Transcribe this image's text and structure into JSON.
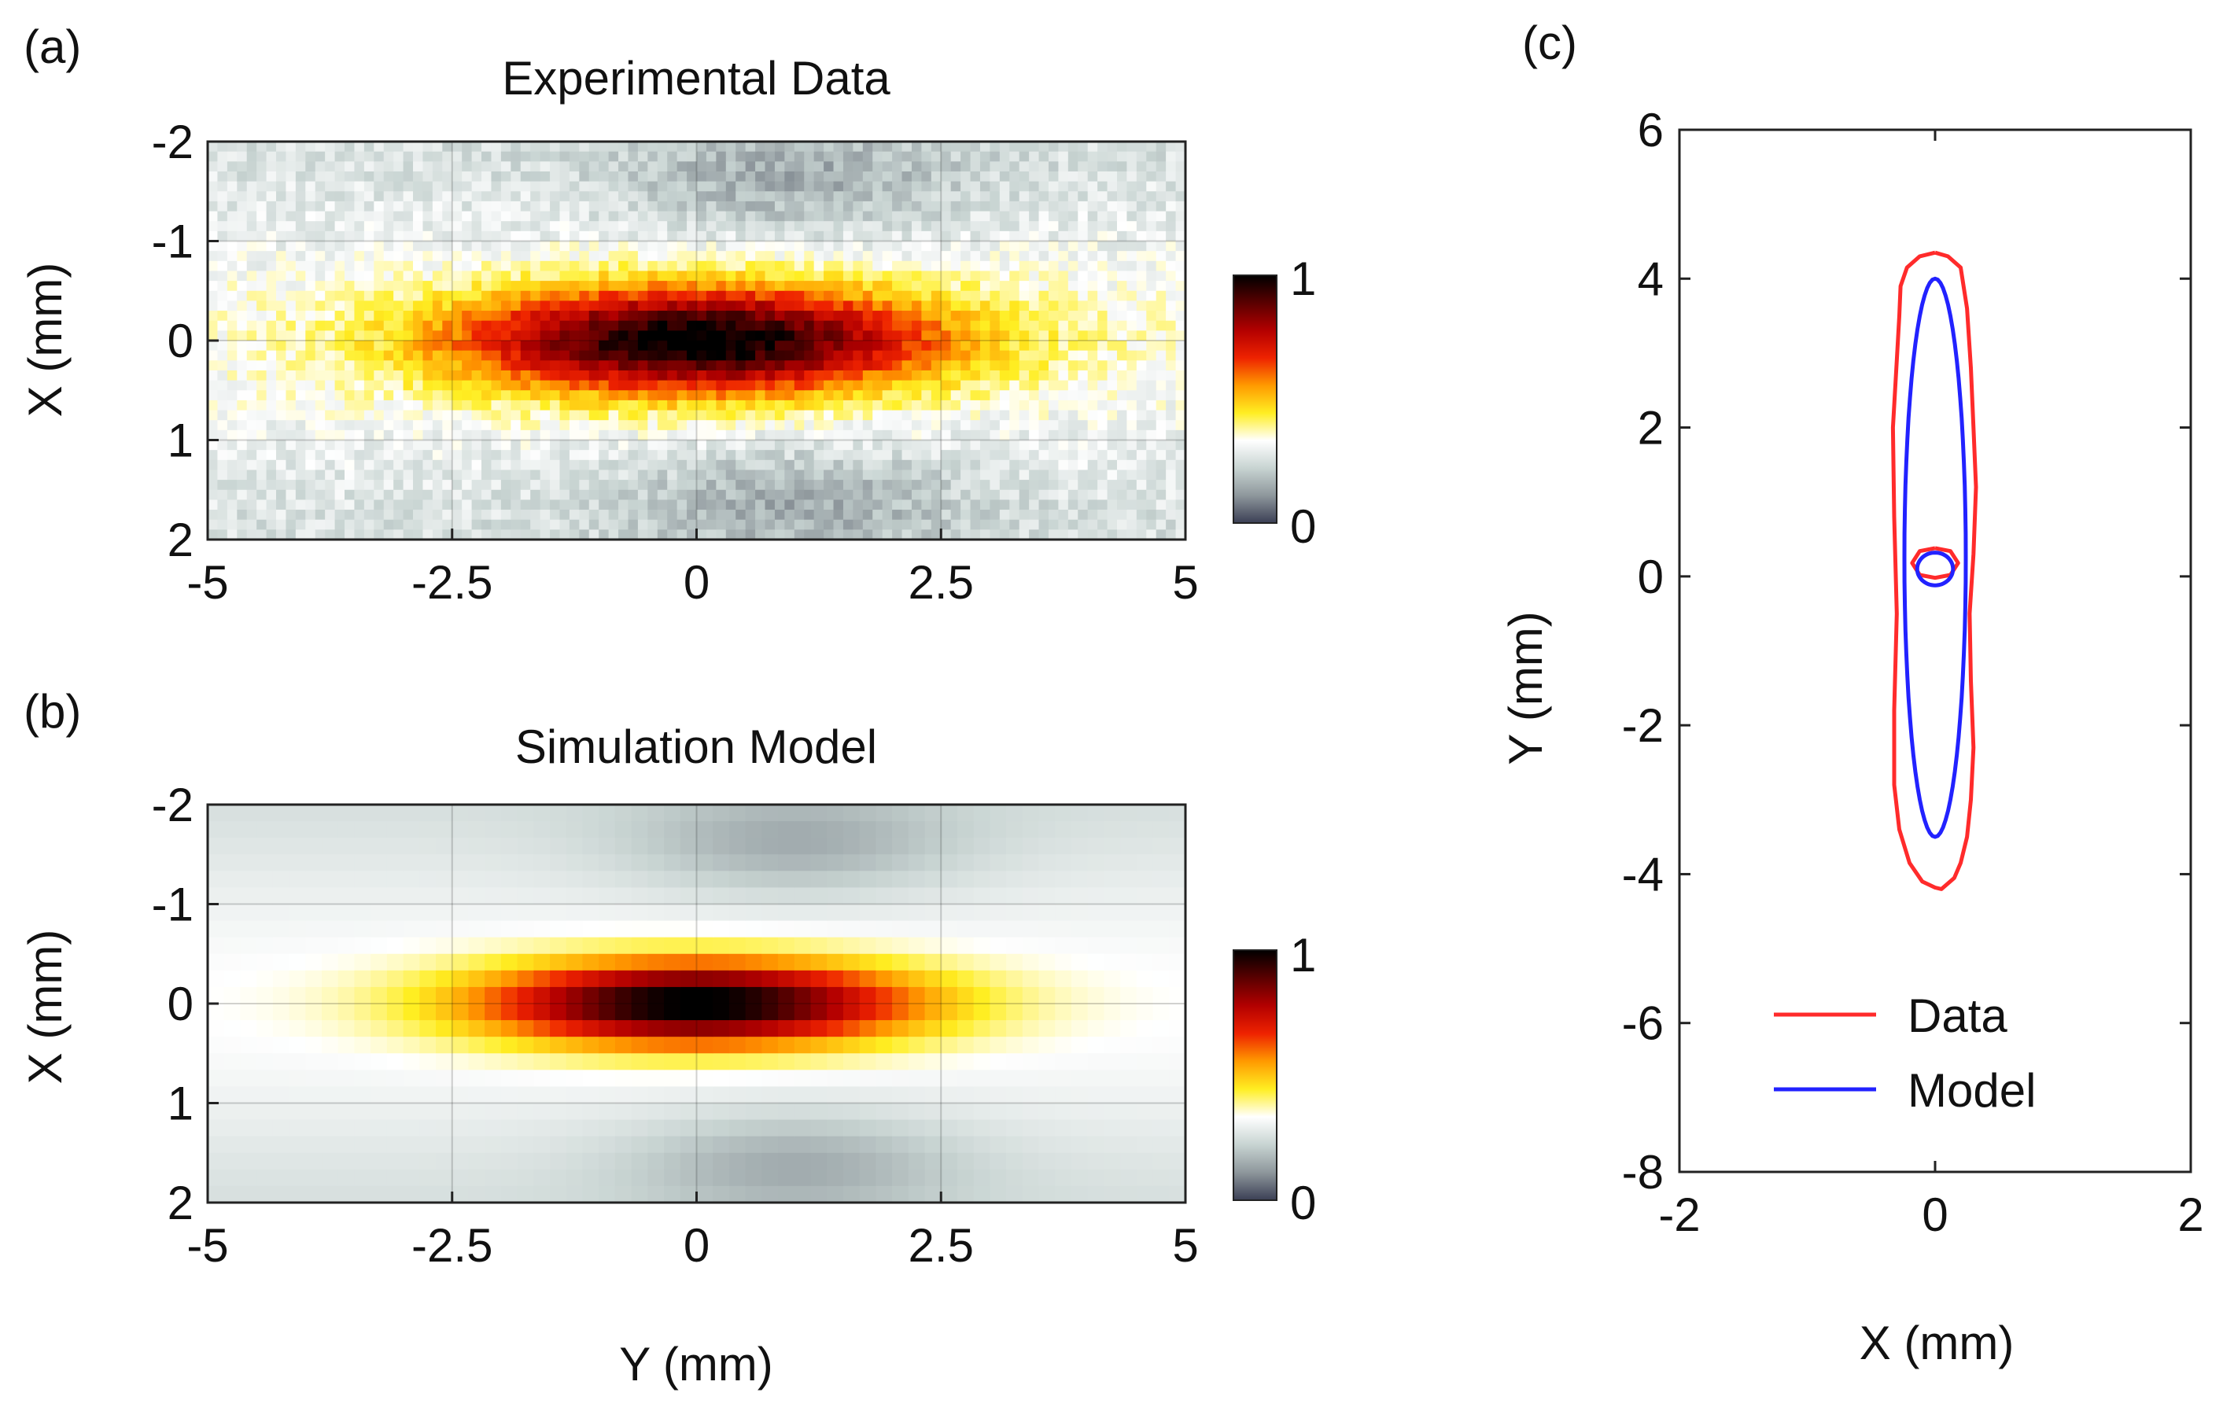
{
  "panels": {
    "a": {
      "label": "(a)",
      "title": "Experimental Data",
      "ylabel": "X (mm)",
      "xlabel": "",
      "colorbar_ticks": [
        "1",
        "0"
      ]
    },
    "b": {
      "label": "(b)",
      "title": "Simulation Model",
      "ylabel": "X (mm)",
      "xlabel": "Y (mm)",
      "colorbar_ticks": [
        "1",
        "0"
      ]
    },
    "c": {
      "label": "(c)",
      "ylabel": "Y (mm)",
      "xlabel": "X (mm)"
    }
  },
  "colors": {
    "data_line": "#ff2b2b",
    "model_line": "#2222ff",
    "colormap": [
      "#3b3f55",
      "#8e979c",
      "#c8d4d2",
      "#ffffff",
      "#ffee22",
      "#ff9a00",
      "#ee2200",
      "#b30000",
      "#5a0000",
      "#000000"
    ]
  },
  "chart_data": [
    {
      "type": "heatmap",
      "panel": "a",
      "title": "Experimental Data",
      "ylabel": "X (mm)",
      "xlim": [
        -5,
        5
      ],
      "ylim": [
        -2,
        2
      ],
      "xticks": [
        "-5",
        "-2.5",
        "0",
        "2.5",
        "5"
      ],
      "yticks": [
        "-2",
        "-1",
        "0",
        "1",
        "2"
      ],
      "colorbar": {
        "min": 0,
        "max": 1
      },
      "distribution": {
        "center_y_mm": 0.0,
        "center_x_mm": 0.0,
        "sigma_y_mm": 1.75,
        "sigma_x_mm": 0.38,
        "background": 0.3,
        "noise": true
      },
      "grid": true
    },
    {
      "type": "heatmap",
      "panel": "b",
      "title": "Simulation Model",
      "xlabel": "Y (mm)",
      "ylabel": "X (mm)",
      "xlim": [
        -5,
        5
      ],
      "ylim": [
        -2,
        2
      ],
      "xticks": [
        "-5",
        "-2.5",
        "0",
        "2.5",
        "5"
      ],
      "yticks": [
        "-2",
        "-1",
        "0",
        "1",
        "2"
      ],
      "colorbar": {
        "min": 0,
        "max": 1
      },
      "distribution": {
        "center_y_mm": 0.0,
        "center_x_mm": 0.0,
        "sigma_y_mm": 1.55,
        "sigma_x_mm": 0.3,
        "background": 0.3,
        "noise": false
      },
      "grid": true
    },
    {
      "type": "line",
      "panel": "c",
      "xlabel": "X (mm)",
      "ylabel": "Y (mm)",
      "xlim": [
        -2,
        2
      ],
      "ylim": [
        -8,
        6
      ],
      "xticks": [
        "-2",
        "0",
        "2"
      ],
      "yticks": [
        "6",
        "4",
        "2",
        "0",
        "-2",
        "-4",
        "-6",
        "-8"
      ],
      "legend": "bottom-right",
      "series": [
        {
          "name": "Data",
          "color": "#ff2b2b",
          "contours": [
            {
              "x": [
                0.0,
                0.1,
                0.2,
                0.25,
                0.28,
                0.3,
                0.32,
                0.3,
                0.27,
                0.28,
                0.3,
                0.28,
                0.25,
                0.2,
                0.15,
                0.05,
                0.0,
                -0.1,
                -0.2,
                -0.28,
                -0.32,
                -0.32,
                -0.3,
                -0.32,
                -0.33,
                -0.3,
                -0.28,
                -0.27,
                -0.22,
                -0.12,
                0.0
              ],
              "y": [
                4.35,
                4.3,
                4.15,
                3.6,
                2.8,
                2.0,
                1.2,
                0.3,
                -0.5,
                -1.4,
                -2.3,
                -3.0,
                -3.5,
                -3.85,
                -4.05,
                -4.2,
                -4.18,
                -4.1,
                -3.85,
                -3.4,
                -2.8,
                -1.8,
                -0.5,
                0.8,
                2.0,
                2.9,
                3.5,
                3.9,
                4.15,
                4.3,
                4.35
              ]
            },
            {
              "x": [
                0.0,
                0.12,
                0.18,
                0.12,
                0.0,
                -0.12,
                -0.18,
                -0.12,
                0.0
              ],
              "y": [
                0.38,
                0.34,
                0.18,
                0.02,
                -0.02,
                0.02,
                0.18,
                0.34,
                0.38
              ]
            }
          ]
        },
        {
          "name": "Model",
          "color": "#2222ff",
          "contours": [
            {
              "ellipse": {
                "cx": 0.0,
                "cy": 0.25,
                "rx": 0.24,
                "ry": 3.75
              }
            },
            {
              "ellipse": {
                "cx": 0.0,
                "cy": 0.1,
                "rx": 0.14,
                "ry": 0.22
              }
            }
          ]
        }
      ]
    }
  ]
}
